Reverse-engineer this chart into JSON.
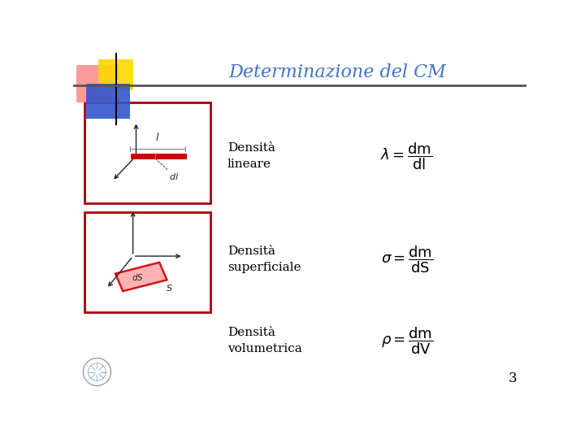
{
  "title": "Determinazione del CM",
  "title_color": "#4472C4",
  "title_fontsize": 16,
  "bg_color": "#FFFFFF",
  "row1_label": "Densità\nlineare",
  "row2_label": "Densità\nsuperficiale",
  "row3_label": "Densità\nvolumetrica",
  "formula1": "$\\lambda = \\dfrac{\\mathrm{dm}}{\\mathrm{dl}}$",
  "formula2": "$\\sigma = \\dfrac{\\mathrm{dm}}{\\mathrm{dS}}$",
  "formula3": "$\\rho = \\dfrac{\\mathrm{dm}}{\\mathrm{dV}}$",
  "label_fontsize": 11,
  "formula_fontsize": 13,
  "page_number": "3",
  "header_line_color": "#555555",
  "box_border_color": "#AA0000",
  "diagram_line_color": "#222222",
  "red_line_color": "#CC0000",
  "corner_red": "#FF8888",
  "corner_yellow": "#FFD700",
  "corner_blue": "#3355CC"
}
